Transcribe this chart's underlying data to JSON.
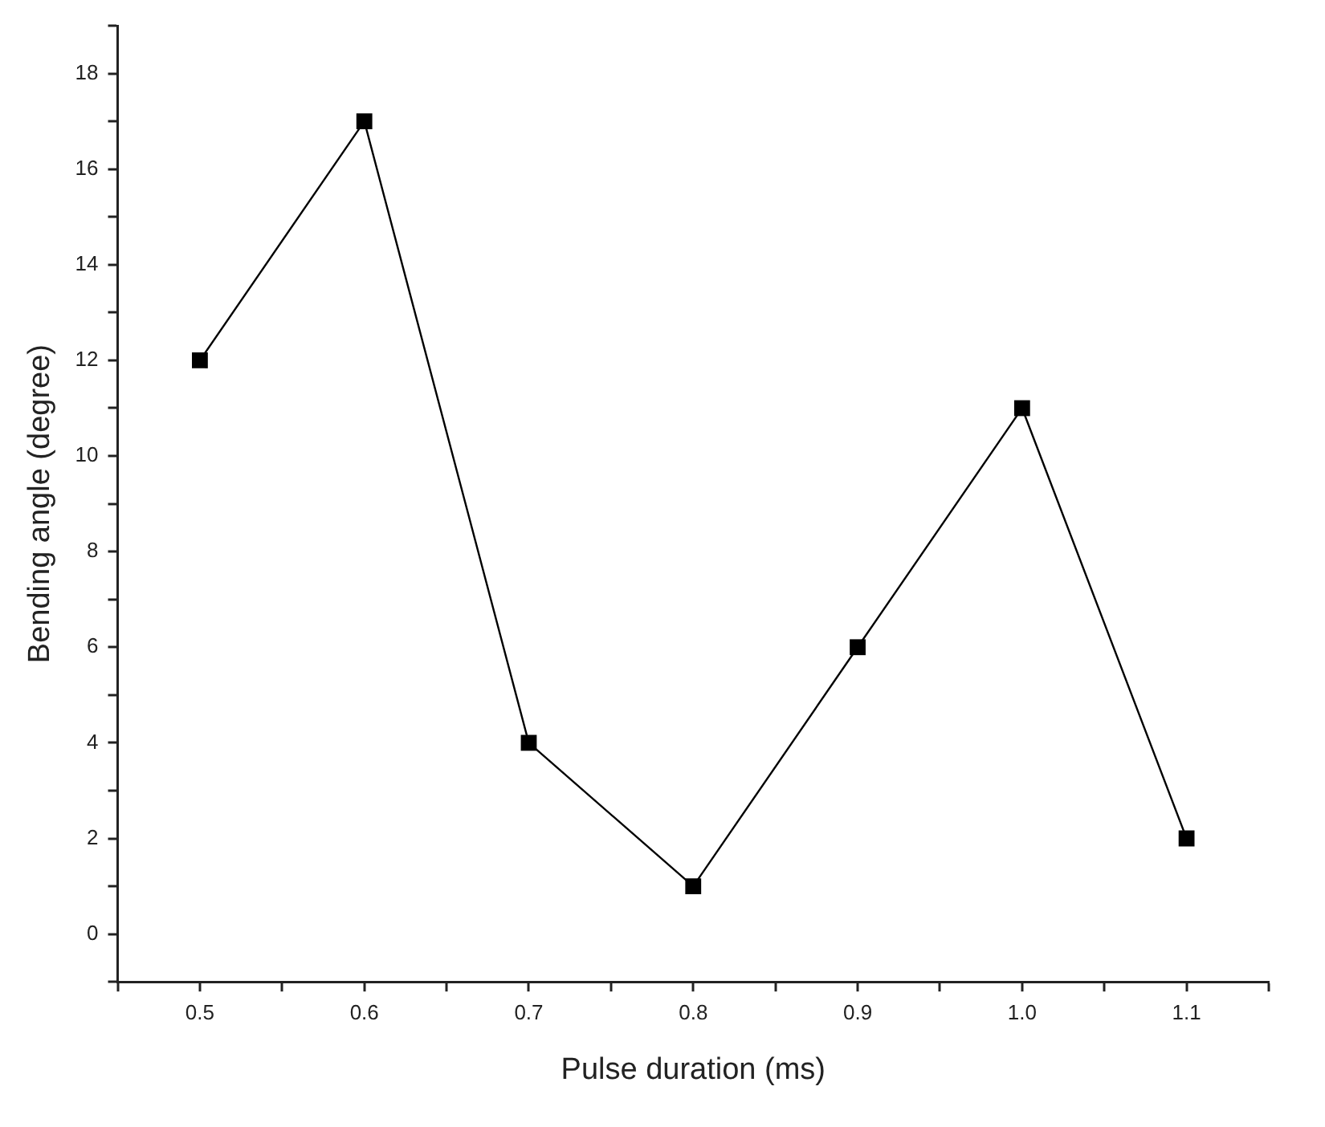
{
  "chart_data": {
    "type": "line",
    "xlabel": "Pulse duration (ms)",
    "ylabel": "Bending angle (degree)",
    "x": [
      0.5,
      0.6,
      0.7,
      0.8,
      0.9,
      1.0,
      1.1
    ],
    "series": [
      {
        "color": "#000000",
        "values": [
          12,
          17,
          4,
          1,
          6,
          11,
          2
        ]
      }
    ],
    "xlim": [
      0.45,
      1.15
    ],
    "xticks": [
      {
        "value": 0.45,
        "label": null
      },
      0.5,
      {
        "value": 0.55,
        "label": null
      },
      0.6,
      {
        "value": 0.65,
        "label": null
      },
      0.7,
      {
        "value": 0.75,
        "label": null
      },
      0.8,
      {
        "value": 0.85,
        "label": null
      },
      0.9,
      {
        "value": 0.95,
        "label": null
      },
      {
        "value": 1.0,
        "label": "1.0"
      },
      {
        "value": 1.05,
        "label": null
      },
      1.1,
      {
        "value": 1.15,
        "label": null
      }
    ],
    "ylim": [
      -1,
      19
    ],
    "yticks": [
      {
        "value": -1,
        "label": null
      },
      0,
      {
        "value": 1,
        "label": null
      },
      2,
      {
        "value": 3,
        "label": null
      },
      4,
      {
        "value": 5,
        "label": null
      },
      6,
      {
        "value": 7,
        "label": null
      },
      8,
      {
        "value": 9,
        "label": null
      },
      10,
      {
        "value": 11,
        "label": null
      },
      12,
      {
        "value": 13,
        "label": null
      },
      14,
      {
        "value": 15,
        "label": null
      },
      16,
      {
        "value": 17,
        "label": null
      },
      18,
      {
        "value": 19,
        "label": null
      }
    ],
    "grid": false,
    "legend": false,
    "marker": "square",
    "line_style": "solid"
  }
}
